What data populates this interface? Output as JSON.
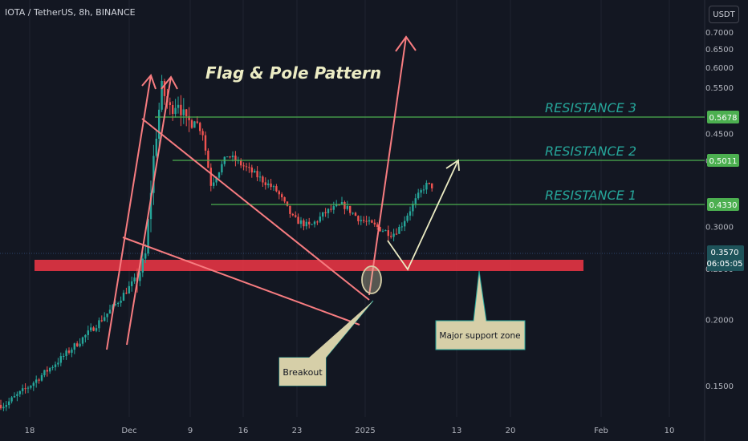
{
  "header": {
    "symbol": "IOTA / TetherUS, 8h, BINANCE",
    "currency": "USDT"
  },
  "colors": {
    "background": "#131722",
    "up": "#26a69a",
    "down": "#ef5350",
    "resistance": "#4caf50",
    "resistance_text": "#26a69a",
    "support_zone": "#f23645",
    "pattern": "#f77c80",
    "callout_bg": "#d6cfa8",
    "axis_text": "#b2b5be"
  },
  "chart_data": {
    "type": "candlestick",
    "title": "Flag & Pole Pattern",
    "y_scale": "log",
    "y_ticks": [
      "0.7000",
      "0.6500",
      "0.6000",
      "0.5500",
      "0.4500",
      "0.4000",
      "0.3000",
      "0.2500",
      "0.2000",
      "0.1500"
    ],
    "x_ticks": [
      "18",
      "Dec",
      "9",
      "16",
      "23",
      "2025",
      "13",
      "20",
      "Feb",
      "10"
    ],
    "price_levels": [
      {
        "label": "RESISTANCE 3",
        "value": "0.5678"
      },
      {
        "label": "RESISTANCE 2",
        "value": "0.5011"
      },
      {
        "label": "RESISTANCE 1",
        "value": "0.4330"
      }
    ],
    "current_price": {
      "value": "0.3570",
      "countdown": "06:05:05"
    },
    "annotations": {
      "breakout": "Breakout",
      "support": "Major support zone"
    },
    "path_points": [
      [
        "2024-11-15",
        0.138
      ],
      [
        "2024-11-18",
        0.15
      ],
      [
        "2024-11-22",
        0.17
      ],
      [
        "2024-11-25",
        0.188
      ],
      [
        "2024-11-28",
        0.21
      ],
      [
        "2024-12-01",
        0.24
      ],
      [
        "2024-12-02",
        0.26
      ],
      [
        "2024-12-03",
        0.4
      ],
      [
        "2024-12-04",
        0.55
      ],
      [
        "2024-12-05",
        0.5
      ],
      [
        "2024-12-06",
        0.52
      ],
      [
        "2024-12-07",
        0.47
      ],
      [
        "2024-12-08",
        0.48
      ],
      [
        "2024-12-09",
        0.45
      ],
      [
        "2024-12-10",
        0.36
      ],
      [
        "2024-12-12",
        0.41
      ],
      [
        "2024-12-15",
        0.38
      ],
      [
        "2024-12-18",
        0.35
      ],
      [
        "2024-12-20",
        0.31
      ],
      [
        "2024-12-22",
        0.3
      ],
      [
        "2024-12-24",
        0.32
      ],
      [
        "2024-12-26",
        0.33
      ],
      [
        "2024-12-28",
        0.31
      ],
      [
        "2024-12-30",
        0.3
      ],
      [
        "2025-01-01",
        0.29
      ],
      [
        "2025-01-02",
        0.3
      ],
      [
        "2025-01-03",
        0.32
      ],
      [
        "2025-01-04",
        0.34
      ],
      [
        "2025-01-05",
        0.36
      ],
      [
        "2025-01-06",
        0.357
      ]
    ]
  }
}
